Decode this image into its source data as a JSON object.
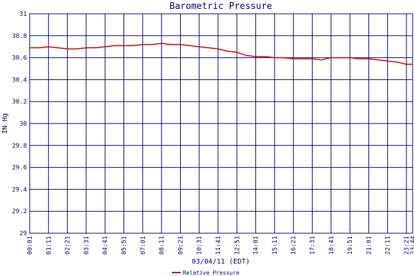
{
  "chart_data": {
    "type": "line",
    "title": "Barometric Pressure",
    "xlabel": "03/04/11 (EDT)",
    "ylabel": "IN Hg",
    "ylim": [
      29,
      31
    ],
    "yticks": [
      "29",
      "29.2",
      "29.4",
      "29.6",
      "29.8",
      "30",
      "30.2",
      "30.4",
      "30.6",
      "30.8",
      "31"
    ],
    "xticks": [
      "00:01",
      "01:11",
      "02:21",
      "03:31",
      "04:41",
      "05:51",
      "07:01",
      "08:11",
      "09:21",
      "10:31",
      "11:41",
      "12:51",
      "14:01",
      "15:11",
      "16:21",
      "17:31",
      "18:41",
      "19:51",
      "21:01",
      "22:11",
      "23:21",
      "23:44"
    ],
    "grid": true,
    "legend_position": "bottom",
    "colors": {
      "series": "#cc0000",
      "grid": "#000080",
      "text": "#000080"
    },
    "series": [
      {
        "name": "Relative Pressure",
        "x": [
          "00:01",
          "00:36",
          "01:11",
          "01:46",
          "02:21",
          "02:56",
          "03:31",
          "04:06",
          "04:41",
          "05:16",
          "05:51",
          "06:26",
          "07:01",
          "07:36",
          "08:11",
          "08:46",
          "09:21",
          "09:56",
          "10:31",
          "11:06",
          "11:41",
          "12:16",
          "12:51",
          "13:26",
          "14:01",
          "14:36",
          "15:11",
          "15:46",
          "16:21",
          "16:56",
          "17:31",
          "18:06",
          "18:41",
          "19:16",
          "19:51",
          "20:26",
          "21:01",
          "21:36",
          "22:11",
          "22:46",
          "23:21",
          "23:44"
        ],
        "values": [
          30.69,
          30.69,
          30.7,
          30.69,
          30.68,
          30.68,
          30.69,
          30.69,
          30.7,
          30.71,
          30.71,
          30.71,
          30.72,
          30.72,
          30.73,
          30.72,
          30.72,
          30.71,
          30.7,
          30.69,
          30.68,
          30.66,
          30.65,
          30.62,
          30.61,
          30.61,
          30.6,
          30.6,
          30.59,
          30.59,
          30.59,
          30.58,
          30.6,
          30.6,
          30.6,
          30.59,
          30.59,
          30.58,
          30.57,
          30.56,
          30.54,
          30.54
        ]
      }
    ]
  }
}
